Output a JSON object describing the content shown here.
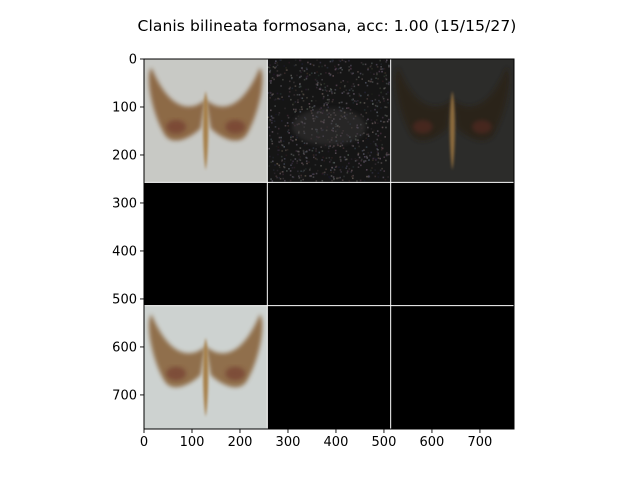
{
  "chart_data": {
    "type": "image-grid",
    "title": "Clanis bilineata formosana, acc: 1.00 (15/15/27)",
    "xlabel": "",
    "ylabel": "",
    "xlim": [
      0,
      771
    ],
    "ylim": [
      771,
      0
    ],
    "x_ticks": [
      0,
      100,
      200,
      300,
      400,
      500,
      600,
      700
    ],
    "y_ticks": [
      0,
      100,
      200,
      300,
      400,
      500,
      600,
      700
    ],
    "grid": {
      "rows": 3,
      "cols": 3,
      "cell_size": 257
    },
    "cells": [
      {
        "row": 0,
        "col": 0,
        "content": "moth",
        "bg": "#c8c9c5",
        "tone": "#8a6540",
        "tone_opacity": 0.95
      },
      {
        "row": 0,
        "col": 1,
        "content": "noise",
        "bg": "#151515",
        "tone": "#4a4646",
        "tone_opacity": 0.35
      },
      {
        "row": 0,
        "col": 2,
        "content": "moth",
        "bg": "#2c2c2a",
        "tone": "#2a2016",
        "tone_opacity": 0.8
      },
      {
        "row": 1,
        "col": 0,
        "content": "blank",
        "bg": "#000000"
      },
      {
        "row": 1,
        "col": 1,
        "content": "blank",
        "bg": "#000000"
      },
      {
        "row": 1,
        "col": 2,
        "content": "blank",
        "bg": "#000000"
      },
      {
        "row": 2,
        "col": 0,
        "content": "moth",
        "bg": "#cdd2d0",
        "tone": "#8d6a45",
        "tone_opacity": 0.95
      },
      {
        "row": 2,
        "col": 1,
        "content": "blank",
        "bg": "#000000"
      },
      {
        "row": 2,
        "col": 2,
        "content": "blank",
        "bg": "#000000"
      }
    ],
    "separator_color": "#ffffff"
  }
}
